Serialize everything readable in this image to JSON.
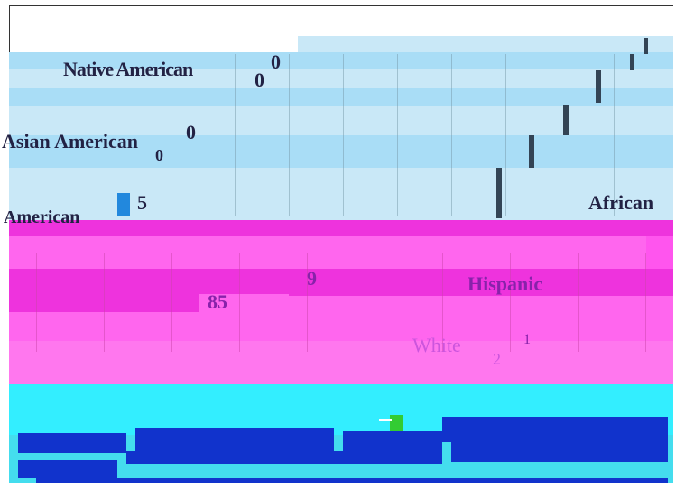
{
  "chart_data": {
    "type": "bar",
    "title": "",
    "xlabel": "",
    "ylabel": "",
    "legend": "none",
    "grid": true,
    "categories": [
      "Native American",
      "Asian American",
      "American",
      "African",
      "Hispanic",
      "White"
    ],
    "value_labels": [
      "0",
      "0",
      "0",
      "0",
      "5",
      "9",
      "85",
      "1",
      "2"
    ],
    "colors": {
      "upper_bands": "#c9e8f7",
      "upper_bands_alt": "#a9ddf6",
      "pink_region": "#ff66ee",
      "pink_dark": "#ee33dd",
      "cyan_region": "#33eeff",
      "blue_dark": "#1133cc",
      "blue_mark": "#2288dd",
      "label_dark": "#222244",
      "label_purple": "#8822aa"
    }
  }
}
